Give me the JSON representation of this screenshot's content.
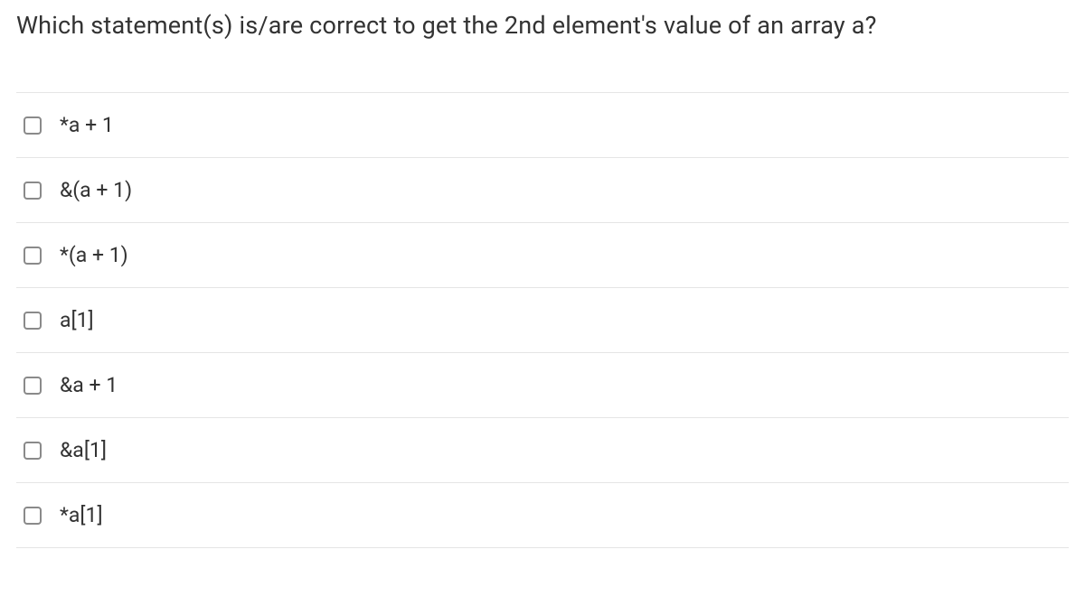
{
  "question": {
    "text": "Which statement(s) is/are correct to get the 2nd element's value of an array a?",
    "text_color": "#333333",
    "fontsize": 27
  },
  "options": [
    {
      "label": "*a + 1",
      "checked": false
    },
    {
      "label": "&(a + 1)",
      "checked": false
    },
    {
      "label": "*(a + 1)",
      "checked": false
    },
    {
      "label": "a[1]",
      "checked": false
    },
    {
      "label": "&a + 1",
      "checked": false
    },
    {
      "label": "&a[1]",
      "checked": false
    },
    {
      "label": "*a[1]",
      "checked": false
    }
  ],
  "styling": {
    "background_color": "#ffffff",
    "border_color": "#e5e5e5",
    "checkbox_border_color": "#8a8a8a",
    "checkbox_radius": 4,
    "option_fontsize": 23,
    "option_text_color": "#333333",
    "row_padding_v": 22
  }
}
